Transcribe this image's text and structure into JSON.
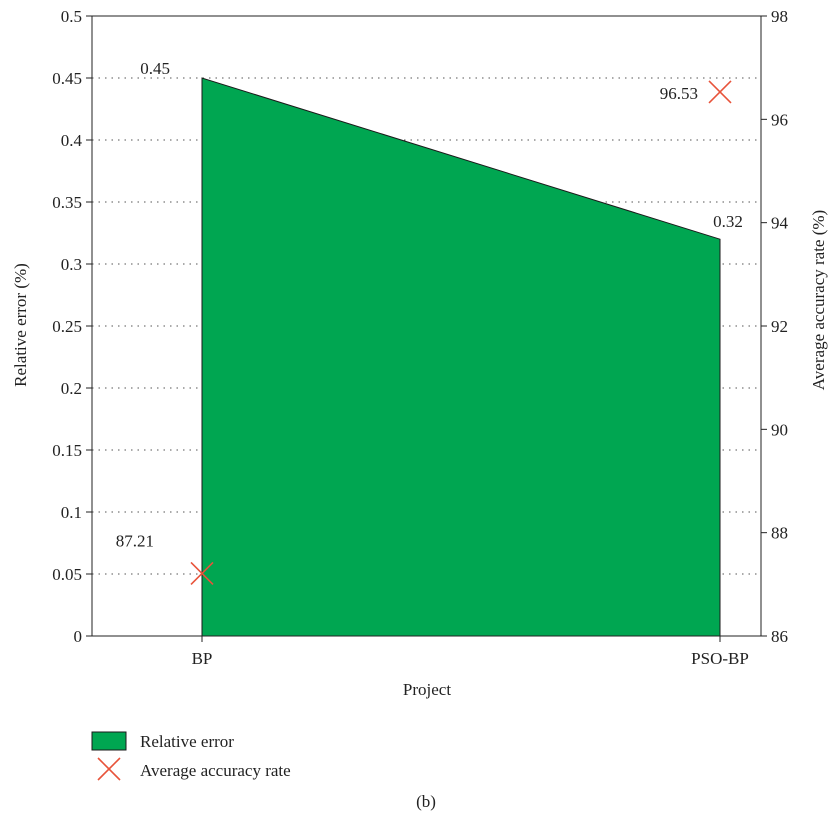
{
  "chart_data": {
    "type": "area",
    "caption": "(b)",
    "xlabel": "Project",
    "ylabel_left": "Relative error (%)",
    "ylabel_right": "Average accuracy rate (%)",
    "categories": [
      "BP",
      "PSO-BP"
    ],
    "y_left": {
      "min": 0,
      "max": 0.5,
      "ticks": [
        "0",
        "0.05",
        "0.1",
        "0.15",
        "0.2",
        "0.25",
        "0.3",
        "0.35",
        "0.4",
        "0.45",
        "0.5"
      ]
    },
    "y_right": {
      "min": 86,
      "max": 98,
      "ticks": [
        "86",
        "88",
        "90",
        "92",
        "94",
        "96",
        "98"
      ]
    },
    "grid": "horizontal dotted",
    "legend_position": "bottom-left",
    "series": [
      {
        "name": "Relative error",
        "axis": "left",
        "kind": "area",
        "color": "#00a651",
        "values": [
          0.45,
          0.32
        ],
        "labels": [
          "0.45",
          "0.32"
        ]
      },
      {
        "name": "Average accuracy rate",
        "axis": "right",
        "kind": "marker",
        "color": "#e8533a",
        "values": [
          87.21,
          96.53
        ],
        "labels": [
          "87.21",
          "96.53"
        ]
      }
    ]
  }
}
